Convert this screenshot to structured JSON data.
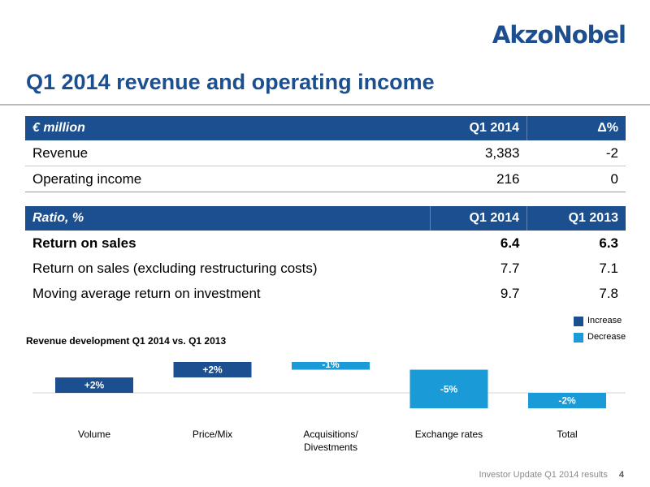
{
  "brand": {
    "logo_text": "AkzoNobel"
  },
  "slide": {
    "title": "Q1 2014 revenue and operating income"
  },
  "table1": {
    "header": {
      "label": "€ million",
      "col1": "Q1 2014",
      "col2": "Δ%"
    },
    "rows": [
      {
        "label": "Revenue",
        "v1": "3,383",
        "v2": "-2"
      },
      {
        "label": "Operating income",
        "v1": "216",
        "v2": "0"
      }
    ]
  },
  "table2": {
    "header": {
      "label": "Ratio, %",
      "col1": "Q1 2014",
      "col2": "Q1 2013"
    },
    "rows": [
      {
        "label": "Return on sales",
        "v1": "6.4",
        "v2": "6.3"
      },
      {
        "label": "Return on sales (excluding restructuring costs)",
        "v1": "7.7",
        "v2": "7.1"
      },
      {
        "label": "Moving average return on investment",
        "v1": "9.7",
        "v2": "7.8"
      }
    ]
  },
  "legend": {
    "increase": "Increase",
    "decrease": "Decrease"
  },
  "colors": {
    "increase": "#1b4f8f",
    "decrease": "#1a9ad6",
    "brand": "#1b4f8f"
  },
  "chart_data": {
    "type": "bar",
    "subtype": "waterfall",
    "title": "Revenue development Q1 2014 vs. Q1 2013",
    "categories": [
      "Volume",
      "Price/Mix",
      "Acquisitions/\nDivestments",
      "Exchange rates",
      "Total"
    ],
    "values": [
      2,
      2,
      -1,
      -5,
      -2
    ],
    "labels": [
      "+2%",
      "+2%",
      "-1%",
      "-5%",
      "-2%"
    ],
    "series": [
      {
        "name": "Increase"
      },
      {
        "name": "Decrease"
      }
    ],
    "legend_position": "top-right"
  },
  "footer": {
    "text": "Investor Update Q1 2014 results",
    "page": "4"
  }
}
